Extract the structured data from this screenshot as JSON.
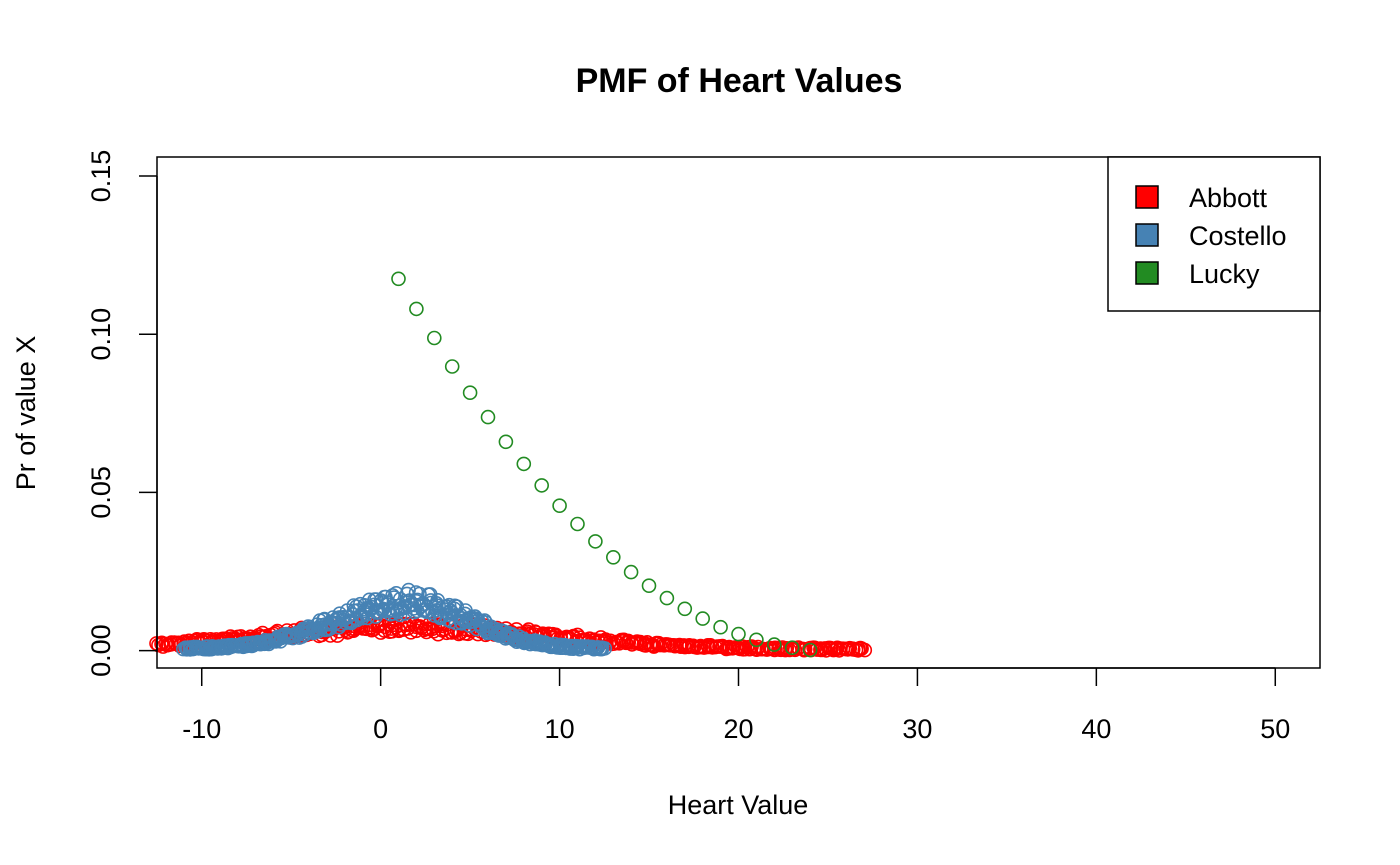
{
  "chart_data": {
    "type": "scatter",
    "title": "PMF of Heart Values",
    "xlabel": "Heart Value",
    "ylabel": "Pr of value X",
    "xlim": [
      -12.5,
      52.5
    ],
    "ylim": [
      -0.0055,
      0.156
    ],
    "xticks": [
      -10,
      0,
      10,
      20,
      30,
      40,
      50
    ],
    "yticks": [
      0.0,
      0.05,
      0.1,
      0.15
    ],
    "xtick_labels": [
      "-10",
      "0",
      "10",
      "20",
      "30",
      "40",
      "50"
    ],
    "ytick_labels": [
      "0.00",
      "0.05",
      "0.10",
      "0.15"
    ],
    "grid": false,
    "legend_position": "top-right",
    "marker": "open-circle",
    "series": [
      {
        "name": "Abbott",
        "color": "#ff0000",
        "sampling": "dense",
        "x_range": [
          -12.5,
          27
        ],
        "peak_x": 1.5,
        "peak_y": 0.0065,
        "spread_left": 8,
        "spread_right": 8,
        "x": [],
        "y": []
      },
      {
        "name": "Costello",
        "color": "#4682b4",
        "sampling": "dense",
        "x_range": [
          -11,
          12.5
        ],
        "peak_x": 1.5,
        "peak_y": 0.0145,
        "spread_left": 4,
        "spread_right": 3.5,
        "x": [],
        "y": []
      },
      {
        "name": "Lucky",
        "color": "#228b22",
        "sampling": "listed",
        "x": [
          1,
          2,
          3,
          4,
          5,
          6,
          7,
          8,
          9,
          10,
          11,
          12,
          13,
          14,
          15,
          16,
          17,
          18,
          19,
          20,
          21,
          22,
          23,
          24
        ],
        "y": [
          0.1175,
          0.108,
          0.0988,
          0.0898,
          0.0815,
          0.0738,
          0.066,
          0.059,
          0.0522,
          0.0458,
          0.04,
          0.0345,
          0.0295,
          0.0248,
          0.0205,
          0.0166,
          0.0132,
          0.0101,
          0.0074,
          0.0052,
          0.0034,
          0.0019,
          0.0009,
          0.0002
        ]
      }
    ]
  }
}
